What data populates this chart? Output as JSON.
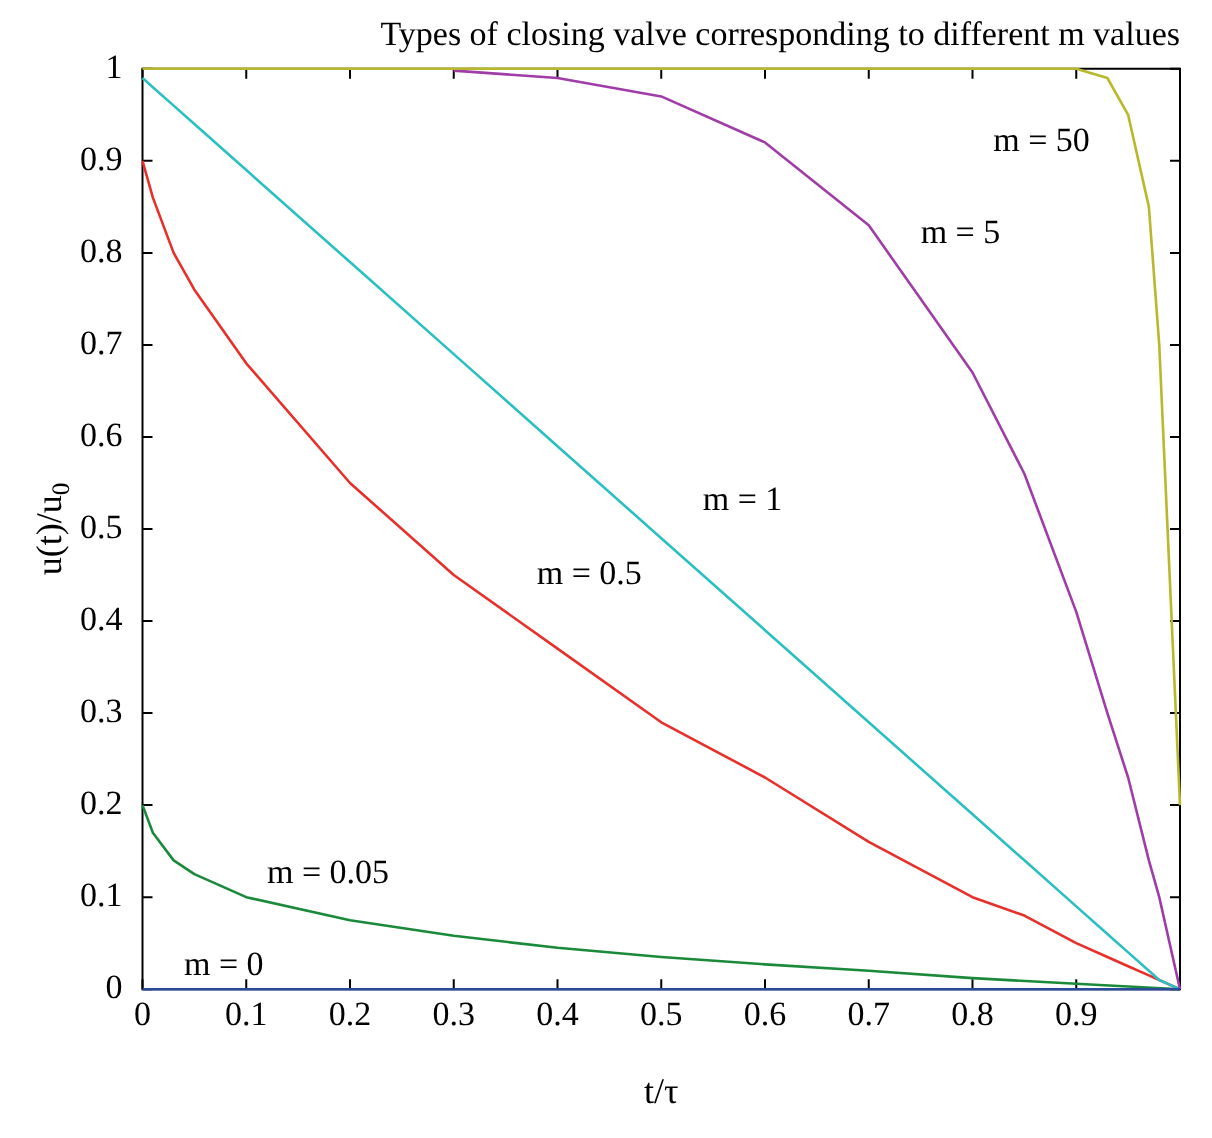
{
  "chart_data": {
    "type": "line",
    "title": "Types of closing valve corresponding to different m values",
    "xlabel": "t/τ",
    "ylabel": "u(t)/u$_{0}$",
    "x": [
      0,
      0.01,
      0.03,
      0.05,
      0.1,
      0.2,
      0.3,
      0.4,
      0.5,
      0.6,
      0.7,
      0.8,
      0.85,
      0.9,
      0.93,
      0.95,
      0.97,
      0.98,
      0.99,
      1
    ],
    "series": [
      {
        "color": "#2a4b9b",
        "values": [
          0,
          0,
          0,
          0,
          0,
          0,
          0,
          0,
          0,
          0,
          0,
          0,
          0,
          0,
          0,
          0,
          0,
          0,
          0,
          0
        ]
      },
      {
        "color": "#1a8a3a",
        "x": [
          0,
          0.01,
          0.03,
          0.05,
          0.1,
          0.2,
          0.3,
          0.4,
          0.5,
          0.6,
          0.7,
          0.8,
          0.9,
          1
        ],
        "values": [
          0.2,
          0.17,
          0.14,
          0.125,
          0.1,
          0.075,
          0.058,
          0.045,
          0.035,
          0.027,
          0.02,
          0.012,
          0.006,
          0
        ]
      },
      {
        "color": "#e8302a",
        "values": [
          0.9,
          0.86,
          0.8,
          0.76,
          0.68,
          0.55,
          0.45,
          0.37,
          0.29,
          0.23,
          0.16,
          0.1,
          0.08,
          0.05,
          0.035,
          0.025,
          0.015,
          0.01,
          0.005,
          0
        ]
      },
      {
        "color": "#2bbfc4",
        "values": [
          0.99,
          0.98,
          0.96,
          0.94,
          0.89,
          0.79,
          0.69,
          0.59,
          0.49,
          0.39,
          0.29,
          0.19,
          0.14,
          0.09,
          0.06,
          0.04,
          0.02,
          0.01,
          0.005,
          0
        ]
      },
      {
        "color": "#a03ca8",
        "values": [
          null,
          null,
          null,
          null,
          null,
          null,
          0.998,
          0.99,
          0.97,
          0.92,
          0.83,
          0.67,
          0.56,
          0.41,
          0.3,
          0.23,
          0.14,
          0.1,
          0.05,
          0
        ]
      },
      {
        "color": "#b8b82a",
        "values": [
          1,
          1,
          1,
          1,
          1,
          1,
          1,
          1,
          1,
          1,
          1,
          1,
          1,
          1,
          0.99,
          0.95,
          0.85,
          0.7,
          0.45,
          0.2
        ]
      }
    ],
    "xlim": [
      0,
      1
    ],
    "xticks": [
      0,
      0.1,
      0.2,
      0.3,
      0.4,
      0.5,
      0.6,
      0.7,
      0.8,
      0.9,
      {
        "value": 1,
        "label": null
      }
    ],
    "ylim": [
      0,
      1
    ],
    "yticks": [
      0,
      0.1,
      0.2,
      0.3,
      0.4,
      0.5,
      0.6,
      0.7,
      0.8,
      0.9,
      1
    ],
    "grid": false,
    "legend": false,
    "marker": "none",
    "line_style": "solid",
    "annotations": [
      "m = 50",
      "m = 5",
      "m = 1",
      "m = 0.5",
      "m = 0.05",
      "m = 0"
    ]
  }
}
